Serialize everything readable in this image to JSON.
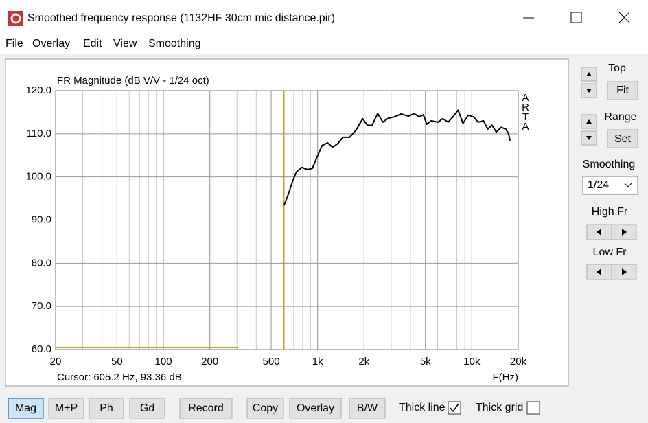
{
  "window": {
    "title": "Smoothed frequency response (1132HF 30cm mic distance.pir)"
  },
  "menu": [
    "File",
    "Overlay",
    "Edit",
    "View",
    "Smoothing"
  ],
  "side_panel": {
    "top_label": "Top",
    "fit": "Fit",
    "range_label": "Range",
    "set": "Set",
    "smoothing_label": "Smoothing",
    "smoothing_value": "1/24",
    "high_fr": "High Fr",
    "low_fr": "Low Fr"
  },
  "toolbar": {
    "buttons": [
      "Mag",
      "M+P",
      "Ph",
      "Gd",
      "Record",
      "Copy",
      "Overlay",
      "B/W"
    ],
    "checkboxes": [
      {
        "label": "Thick line",
        "checked": true
      },
      {
        "label": "Thick grid",
        "checked": false
      }
    ]
  },
  "chart_data": {
    "type": "line",
    "title": "FR Magnitude (dB V/V - 1/24 oct)",
    "watermark": "ARTA",
    "xlabel": "F(Hz)",
    "xscale": "log",
    "grid": true,
    "cursor": {
      "label": "Cursor: 605.2 Hz, 93.36 dB",
      "x": 605.2,
      "color": "#b8a020"
    },
    "xlim": [
      20,
      20000
    ],
    "xticks": [
      20,
      50,
      100,
      200,
      500,
      {
        "value": 1000,
        "label": "1k"
      },
      {
        "value": 2000,
        "label": "2k"
      },
      {
        "value": 5000,
        "label": "5k"
      },
      {
        "value": 10000,
        "label": "10k"
      },
      {
        "value": 20000,
        "label": "20k"
      }
    ],
    "ylim": [
      60,
      120
    ],
    "yticks": [
      {
        "value": 60,
        "label": "60.0"
      },
      {
        "value": 70,
        "label": "70.0"
      },
      {
        "value": 80,
        "label": "80.0"
      },
      {
        "value": 90,
        "label": "90.0"
      },
      {
        "value": 100,
        "label": "100.0"
      },
      {
        "value": 110,
        "label": "110.0"
      },
      {
        "value": 120,
        "label": "120.0"
      }
    ],
    "series": [
      {
        "color": "#000000",
        "x": [
          605,
          640,
          693,
          730,
          792,
          860,
          925,
          993,
          1070,
          1160,
          1250,
          1350,
          1460,
          1610,
          1770,
          1960,
          2100,
          2250,
          2450,
          2650,
          2870,
          3140,
          3480,
          3880,
          4240,
          4550,
          4850,
          5100,
          5460,
          6040,
          6480,
          7020,
          7530,
          8150,
          8760,
          9480,
          10270,
          11000,
          11900,
          12700,
          13500,
          14400,
          15500,
          16600,
          17300,
          17700
        ],
        "values": [
          93.4,
          95.6,
          99.3,
          101.2,
          102.2,
          101.7,
          102.0,
          104.7,
          107.3,
          107.9,
          106.9,
          107.7,
          109.2,
          109.2,
          110.8,
          113.5,
          112.0,
          111.9,
          114.7,
          112.7,
          113.6,
          113.9,
          114.6,
          114.1,
          114.7,
          113.9,
          114.4,
          112.2,
          113.0,
          112.7,
          113.5,
          112.7,
          113.9,
          115.5,
          112.4,
          114.3,
          113.9,
          112.7,
          113.0,
          111.1,
          112.0,
          110.4,
          111.5,
          111.1,
          110.0,
          108.4
        ]
      }
    ]
  }
}
